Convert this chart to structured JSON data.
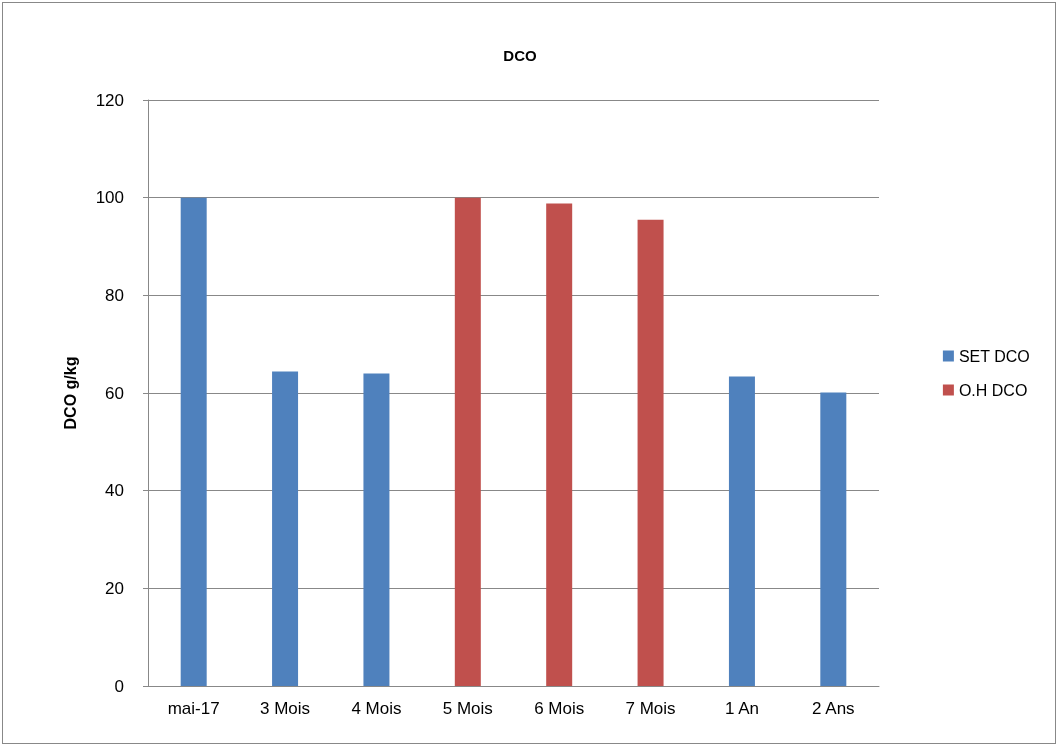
{
  "chart_data": {
    "type": "bar",
    "title": "DCO",
    "ylabel": "DCO g/kg",
    "categories": [
      "mai-17",
      "3 Mois",
      "4 Mois",
      "5 Mois",
      "6 Mois",
      "7 Mois",
      "1 An",
      "2 Ans"
    ],
    "series": [
      {
        "name": "SET DCO",
        "color": "#4f81bd",
        "values": [
          100,
          64.4,
          64.0,
          null,
          null,
          null,
          63.4,
          60.1
        ]
      },
      {
        "name": "O.H DCO",
        "color": "#c0504d",
        "values": [
          null,
          null,
          null,
          100,
          98.8,
          95.5,
          null,
          null
        ]
      }
    ],
    "ylim": [
      0,
      120
    ],
    "yticks": [
      0,
      20,
      40,
      60,
      80,
      100,
      120
    ],
    "grid": "y",
    "legend": "right"
  }
}
